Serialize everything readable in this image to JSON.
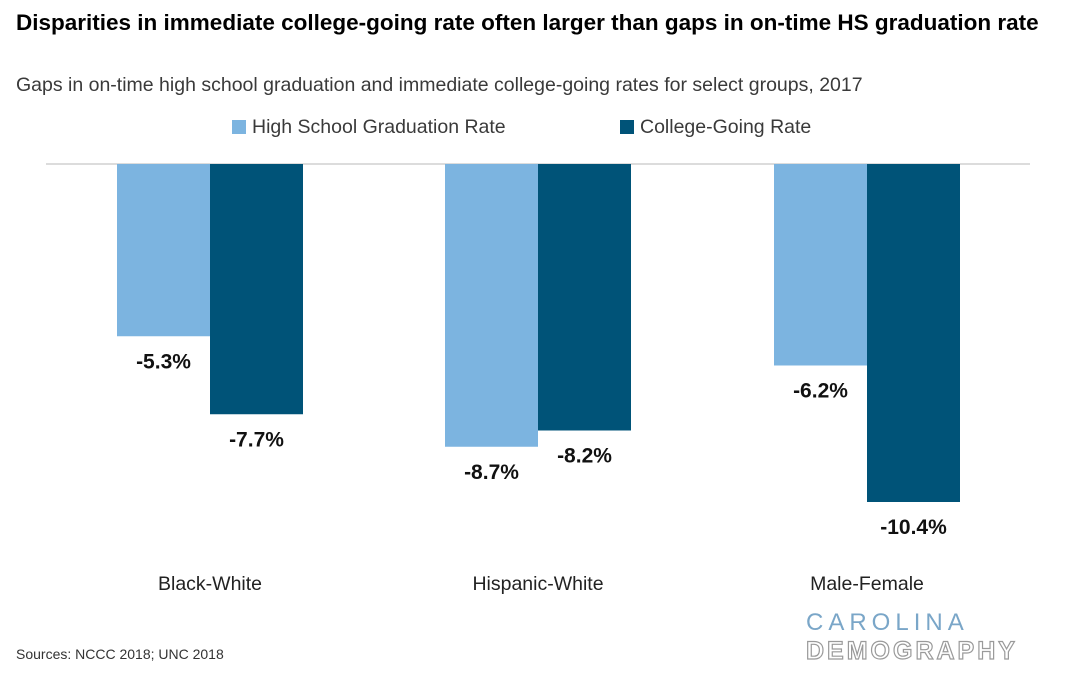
{
  "title": "Disparities in immediate college-going rate often larger than gaps in on-time HS graduation rate",
  "subtitle": "Gaps in on-time high school graduation and immediate college-going rates for select groups, 2017",
  "source": "Sources: NCCC 2018; UNC 2018",
  "logo": {
    "line1": "CAROLINA",
    "line2": "DEMOGRAPHY"
  },
  "colors": {
    "hs_graduation": "#7cb4e0",
    "college_going": "#005378",
    "baseline": "#d0d0d0"
  },
  "chart_data": {
    "type": "bar",
    "title": "Disparities in immediate college-going rate often larger than gaps in on-time HS graduation rate",
    "subtitle": "Gaps in on-time high school graduation and immediate college-going rates for select groups, 2017",
    "categories": [
      "Black-White",
      "Hispanic-White",
      "Male-Female"
    ],
    "series": [
      {
        "name": "High School Graduation Rate",
        "values": [
          -5.3,
          -8.7,
          -6.2
        ],
        "labels": [
          "-5.3%",
          "-8.7%",
          "-6.2%"
        ],
        "color": "#7cb4e0"
      },
      {
        "name": "College-Going Rate",
        "values": [
          -7.7,
          -8.2,
          -10.4
        ],
        "labels": [
          "-7.7%",
          "-8.2%",
          "-10.4%"
        ],
        "color": "#005378"
      }
    ],
    "xlabel": "",
    "ylabel": "",
    "ylim": [
      -13.1,
      0
    ],
    "grid": false,
    "legend": "top-center",
    "data_labels": true
  }
}
